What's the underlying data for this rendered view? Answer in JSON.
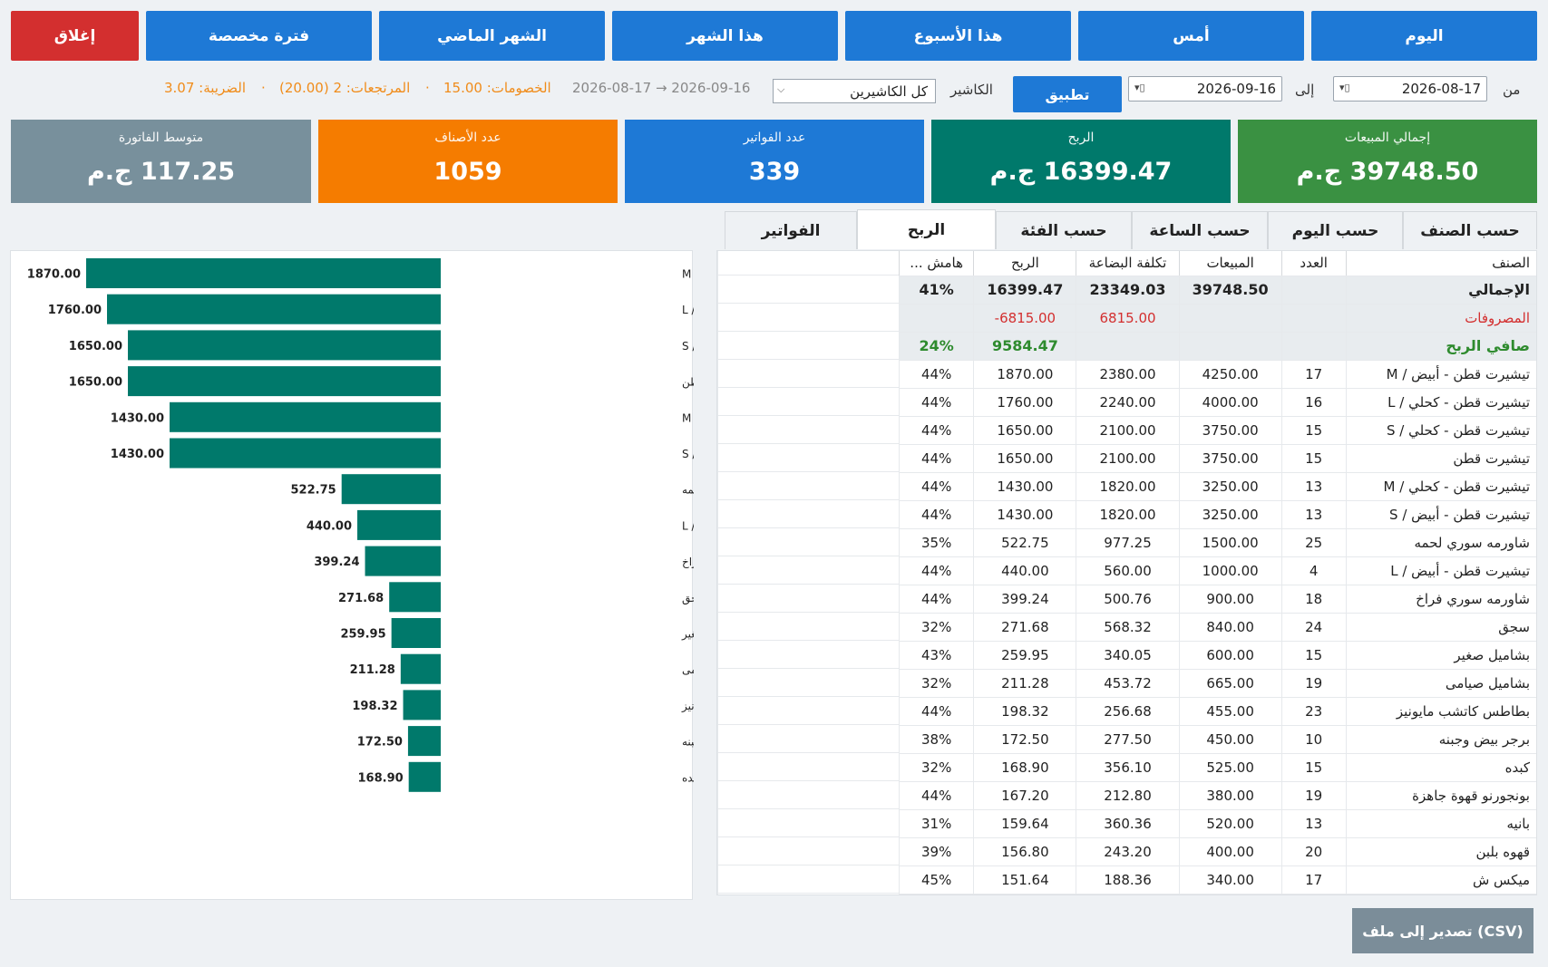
{
  "quick_ranges": {
    "today": "اليوم",
    "yesterday": "أمس",
    "this_week": "هذا الأسبوع",
    "this_month": "هذا الشهر",
    "last_month": "الشهر الماضي",
    "custom": "فترة مخصصة",
    "close": "إغلاق"
  },
  "filters": {
    "from_label": "من",
    "from_date": "2026-08-17",
    "to_label": "إلى",
    "to_date": "2026-09-16",
    "apply": "تطبيق",
    "cashier_label": "الكاشير",
    "cashier_value": "كل الكاشيرين"
  },
  "summary": {
    "range": "2026-08-17  →  2026-09-16",
    "discounts": "الخصومات: 15.00",
    "returns": "المرتجعات: 2 (20.00)",
    "tax": "الضريبة: 3.07",
    "sep": "·"
  },
  "cards": {
    "sales": {
      "title": "إجمالي المبيعات",
      "value": "39748.50 ج.م",
      "color": "#3a9142"
    },
    "profit": {
      "title": "الربح",
      "value": "16399.47 ج.م",
      "color": "#00796b"
    },
    "invoices": {
      "title": "عدد الفواتير",
      "value": "339",
      "color": "#1e79d6"
    },
    "items": {
      "title": "عدد الأصناف",
      "value": "1059",
      "color": "#f57c00"
    },
    "avg": {
      "title": "متوسط الفاتورة",
      "value": "117.25 ج.م",
      "color": "#78909c"
    }
  },
  "tabs": {
    "by_item": "حسب الصنف",
    "by_day": "حسب اليوم",
    "by_hour": "حسب الساعة",
    "by_category": "حسب الفئة",
    "profit": "الربح",
    "invoices": "الفواتير"
  },
  "table": {
    "headers": {
      "item": "الصنف",
      "count": "العدد",
      "sales": "المبيعات",
      "cost": "تكلفة البضاعة",
      "profit": "الربح",
      "margin": "هامش ..."
    },
    "total": {
      "label": "الإجمالي",
      "sales": "39748.50",
      "cost": "23349.03",
      "profit": "16399.47",
      "margin": "41%"
    },
    "expenses": {
      "label": "المصروفات",
      "cost": "6815.00",
      "profit": "-6815.00"
    },
    "net": {
      "label": "صافي الربح",
      "profit": "9584.47",
      "margin": "24%"
    },
    "rows": [
      {
        "name": "تيشيرت قطن - أبيض / M",
        "count": "17",
        "sales": "4250.00",
        "cost": "2380.00",
        "profit": "1870.00",
        "margin": "44%"
      },
      {
        "name": "تيشيرت قطن - كحلي / L",
        "count": "16",
        "sales": "4000.00",
        "cost": "2240.00",
        "profit": "1760.00",
        "margin": "44%"
      },
      {
        "name": "تيشيرت قطن - كحلي / S",
        "count": "15",
        "sales": "3750.00",
        "cost": "2100.00",
        "profit": "1650.00",
        "margin": "44%"
      },
      {
        "name": "تيشيرت قطن",
        "count": "15",
        "sales": "3750.00",
        "cost": "2100.00",
        "profit": "1650.00",
        "margin": "44%"
      },
      {
        "name": "تيشيرت قطن - كحلي / M",
        "count": "13",
        "sales": "3250.00",
        "cost": "1820.00",
        "profit": "1430.00",
        "margin": "44%"
      },
      {
        "name": "تيشيرت قطن - أبيض / S",
        "count": "13",
        "sales": "3250.00",
        "cost": "1820.00",
        "profit": "1430.00",
        "margin": "44%"
      },
      {
        "name": "شاورمه سوري لحمه",
        "count": "25",
        "sales": "1500.00",
        "cost": "977.25",
        "profit": "522.75",
        "margin": "35%"
      },
      {
        "name": "تيشيرت قطن - أبيض / L",
        "count": "4",
        "sales": "1000.00",
        "cost": "560.00",
        "profit": "440.00",
        "margin": "44%"
      },
      {
        "name": "شاورمه سوري فراخ",
        "count": "18",
        "sales": "900.00",
        "cost": "500.76",
        "profit": "399.24",
        "margin": "44%"
      },
      {
        "name": "سجق",
        "count": "24",
        "sales": "840.00",
        "cost": "568.32",
        "profit": "271.68",
        "margin": "32%"
      },
      {
        "name": "بشاميل صغير",
        "count": "15",
        "sales": "600.00",
        "cost": "340.05",
        "profit": "259.95",
        "margin": "43%"
      },
      {
        "name": "بشاميل صيامى",
        "count": "19",
        "sales": "665.00",
        "cost": "453.72",
        "profit": "211.28",
        "margin": "32%"
      },
      {
        "name": "بطاطس كاتشب مايونيز",
        "count": "23",
        "sales": "455.00",
        "cost": "256.68",
        "profit": "198.32",
        "margin": "44%"
      },
      {
        "name": "برجر بيض وجبنه",
        "count": "10",
        "sales": "450.00",
        "cost": "277.50",
        "profit": "172.50",
        "margin": "38%"
      },
      {
        "name": "كبده",
        "count": "15",
        "sales": "525.00",
        "cost": "356.10",
        "profit": "168.90",
        "margin": "32%"
      },
      {
        "name": "بونجورنو قهوة جاهزة",
        "count": "19",
        "sales": "380.00",
        "cost": "212.80",
        "profit": "167.20",
        "margin": "44%"
      },
      {
        "name": "بانيه",
        "count": "13",
        "sales": "520.00",
        "cost": "360.36",
        "profit": "159.64",
        "margin": "31%"
      },
      {
        "name": "قهوه بلبن",
        "count": "20",
        "sales": "400.00",
        "cost": "243.20",
        "profit": "156.80",
        "margin": "39%"
      },
      {
        "name": "ميكس ش",
        "count": "17",
        "sales": "340.00",
        "cost": "188.36",
        "profit": "151.64",
        "margin": "45%"
      }
    ]
  },
  "chart_data": {
    "type": "bar",
    "orientation": "horizontal",
    "categories": [
      "تيشيرت قطن - أبيض / M",
      "تيشيرت قطن - كحلي / L",
      "تيشيرت قطن - كحلي / S",
      "تيشيرت قطن",
      "تيشيرت قطن - كحلي / M",
      "تيشيرت قطن - أبيض / S",
      "شاورمه سوري لحمه",
      "تيشيرت قطن - أبيض / L",
      "شاورمه سوري فراخ",
      "سجق",
      "بشاميل صغير",
      "بشاميل صيامى",
      "بطاطس كاتشب مايونيز",
      "برجر بيض وجبنه",
      "كبده"
    ],
    "values": [
      1870.0,
      1760.0,
      1650.0,
      1650.0,
      1430.0,
      1430.0,
      522.75,
      440.0,
      399.24,
      271.68,
      259.95,
      211.28,
      198.32,
      172.5,
      168.9
    ],
    "labels": [
      "1870.00",
      "1760.00",
      "1650.00",
      "1650.00",
      "1430.00",
      "1430.00",
      "522.75",
      "440.00",
      "399.24",
      "271.68",
      "259.95",
      "211.28",
      "198.32",
      "172.50",
      "168.90"
    ],
    "color": "#00796b",
    "xlim": [
      0,
      1870
    ]
  },
  "export": "تصدير إلى ملف (CSV)"
}
